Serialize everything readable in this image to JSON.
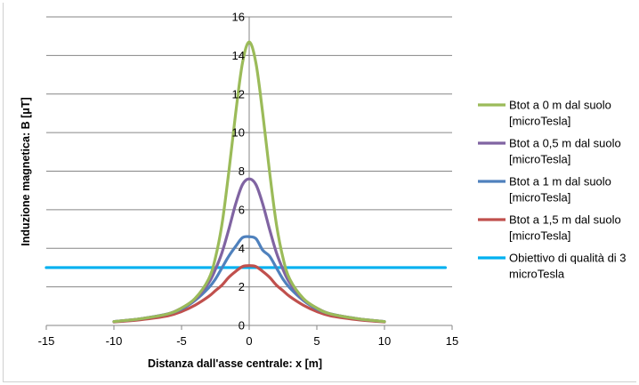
{
  "chart_data": {
    "type": "line",
    "title": "",
    "xlabel": "Distanza dall'asse centrale: x [m]",
    "ylabel": "Induzione magnetica: B [μT]",
    "xlim": [
      -15,
      15
    ],
    "ylim": [
      0,
      16
    ],
    "xticks": [
      -15,
      -10,
      -5,
      0,
      5,
      10,
      15
    ],
    "yticks": [
      0,
      2,
      4,
      6,
      8,
      10,
      12,
      14,
      16
    ],
    "grid": "horizontal",
    "legend_position": "right",
    "series": [
      {
        "name": "Btot a 0 m dal suolo [microTesla]",
        "color": "#9bbb59",
        "x": [
          -10,
          -8,
          -6,
          -5,
          -4,
          -3,
          -2.5,
          -2,
          -1.5,
          -1,
          -0.5,
          0,
          0.5,
          1,
          1.5,
          2,
          2.5,
          3,
          4,
          5,
          6,
          8,
          10
        ],
        "y": [
          0.2,
          0.35,
          0.6,
          0.9,
          1.4,
          2.4,
          3.5,
          5.3,
          8.0,
          11.0,
          13.6,
          14.7,
          13.6,
          11.0,
          8.0,
          5.3,
          3.5,
          2.4,
          1.4,
          0.9,
          0.6,
          0.35,
          0.2
        ]
      },
      {
        "name": "Btot a 0,5 m dal suolo [microTesla]",
        "color": "#8064a2",
        "x": [
          -10,
          -8,
          -6,
          -5,
          -4,
          -3,
          -2.5,
          -2,
          -1.5,
          -1,
          -0.5,
          0,
          0.5,
          1,
          1.5,
          2,
          2.5,
          3,
          4,
          5,
          6,
          8,
          10
        ],
        "y": [
          0.2,
          0.35,
          0.6,
          0.9,
          1.35,
          2.2,
          2.9,
          3.8,
          5.0,
          6.3,
          7.3,
          7.6,
          7.3,
          6.3,
          5.0,
          3.8,
          2.9,
          2.2,
          1.35,
          0.9,
          0.6,
          0.35,
          0.2
        ]
      },
      {
        "name": "Btot a 1 m dal suolo [microTesla]",
        "color": "#4f81bd",
        "x": [
          -10,
          -8,
          -6,
          -5,
          -4,
          -3,
          -2.5,
          -2,
          -1.5,
          -1,
          -0.5,
          0,
          0.5,
          1,
          1.5,
          2,
          2.5,
          3,
          4,
          5,
          6,
          8,
          10
        ],
        "y": [
          0.2,
          0.35,
          0.6,
          0.85,
          1.3,
          1.95,
          2.4,
          3.0,
          3.6,
          4.1,
          4.55,
          4.6,
          4.5,
          3.9,
          3.6,
          3.0,
          2.4,
          1.95,
          1.3,
          0.85,
          0.6,
          0.35,
          0.2
        ]
      },
      {
        "name": "Btot a 1,5 m dal suolo [microTesla]",
        "color": "#c0504d",
        "x": [
          -10,
          -8,
          -6,
          -5,
          -4,
          -3,
          -2.5,
          -2,
          -1.5,
          -1,
          -0.5,
          0,
          0.5,
          1,
          1.5,
          2,
          2.5,
          3,
          4,
          5,
          6,
          8,
          10
        ],
        "y": [
          0.18,
          0.3,
          0.5,
          0.72,
          1.05,
          1.5,
          1.8,
          2.1,
          2.5,
          2.8,
          3.05,
          3.1,
          3.05,
          2.8,
          2.5,
          2.1,
          1.8,
          1.5,
          1.05,
          0.72,
          0.5,
          0.3,
          0.18
        ]
      },
      {
        "name": "Obiettivo di qualità di 3 microTesla",
        "color": "#00b0f0",
        "x": [
          -15,
          14.5
        ],
        "y": [
          3,
          3
        ]
      }
    ]
  },
  "legend": [
    {
      "line1": "Btot a 0 m dal suolo",
      "line2": "[microTesla]",
      "color": "#9bbb59"
    },
    {
      "line1": "Btot a 0,5 m dal suolo",
      "line2": "[microTesla]",
      "color": "#8064a2"
    },
    {
      "line1": "Btot a 1 m dal suolo",
      "line2": "[microTesla]",
      "color": "#4f81bd"
    },
    {
      "line1": "Btot a 1,5 m dal suolo",
      "line2": "[microTesla]",
      "color": "#c0504d"
    },
    {
      "line1": "Obiettivo di qualità di 3",
      "line2": "microTesla",
      "color": "#00b0f0"
    }
  ]
}
